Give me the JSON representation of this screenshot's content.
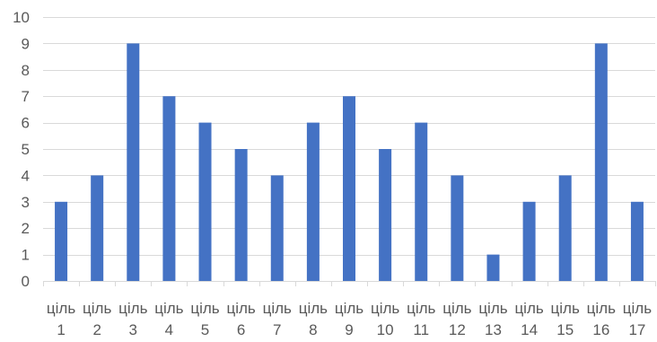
{
  "chart_data": {
    "type": "bar",
    "title": "",
    "xlabel": "",
    "ylabel": "",
    "ylim": [
      0,
      10
    ],
    "yticks": [
      0,
      1,
      2,
      3,
      4,
      5,
      6,
      7,
      8,
      9,
      10
    ],
    "grid": true,
    "legend": "none",
    "bar_color": "#4472c4",
    "grid_color": "#d9d9d9",
    "label_color": "#595959",
    "categories": [
      [
        "ціль",
        "1"
      ],
      [
        "ціль",
        "2"
      ],
      [
        "ціль",
        "3"
      ],
      [
        "ціль",
        "4"
      ],
      [
        "ціль",
        "5"
      ],
      [
        "ціль",
        "6"
      ],
      [
        "ціль",
        "7"
      ],
      [
        "ціль",
        "8"
      ],
      [
        "ціль",
        "9"
      ],
      [
        "ціль",
        "10"
      ],
      [
        "ціль",
        "11"
      ],
      [
        "ціль",
        "12"
      ],
      [
        "ціль",
        "13"
      ],
      [
        "ціль",
        "14"
      ],
      [
        "ціль",
        "15"
      ],
      [
        "ціль",
        "16"
      ],
      [
        "ціль",
        "17"
      ]
    ],
    "values": [
      3,
      4,
      9,
      7,
      6,
      5,
      4,
      6,
      7,
      5,
      6,
      4,
      1,
      3,
      4,
      9,
      3
    ]
  }
}
